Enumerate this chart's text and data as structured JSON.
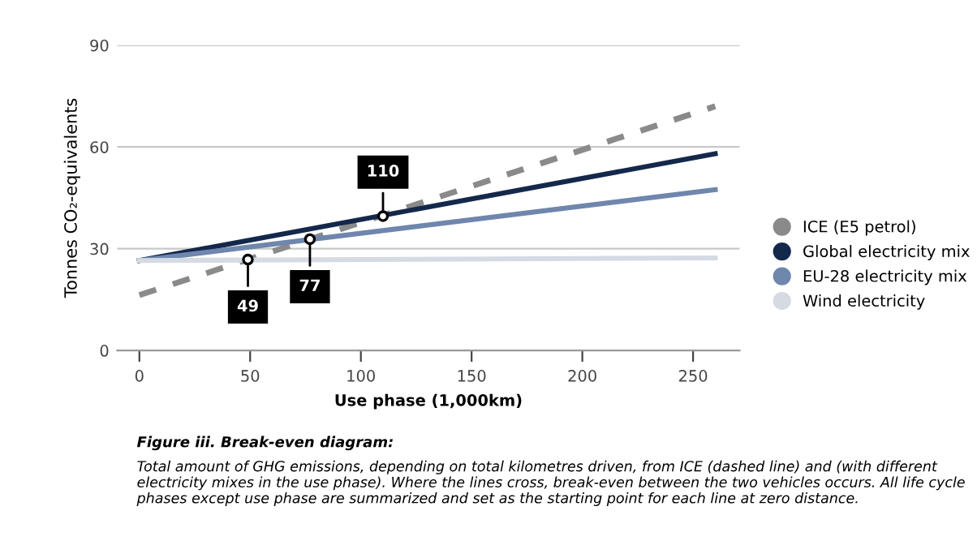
{
  "chart_data": {
    "type": "line",
    "title": "Figure iii. Break-even diagram:",
    "xlabel": "Use phase (1,000km)",
    "ylabel": "Tonnes CO₂-equivalents",
    "series": [
      {
        "name": "ICE (E5 petrol)",
        "color": "#8a8a8a",
        "line_style": "dashed",
        "values": [
          16.3,
          72
        ]
      },
      {
        "name": "Global electricity mix",
        "color": "#14284b",
        "values": [
          26.5,
          58
        ]
      },
      {
        "name": "EU-28 electricity mix",
        "color": "#6f86ad",
        "values": [
          26.5,
          47.4
        ]
      },
      {
        "name": "Wind electricity",
        "color": "#d5dae3",
        "values": [
          26.5,
          27.3
        ]
      }
    ],
    "annotations": [
      {
        "text": "49",
        "x": 49,
        "y": 26.8
      },
      {
        "text": "77",
        "x": 77,
        "y": 32.8
      },
      {
        "text": "110",
        "x": 110,
        "y": 39.6
      },
      "Total amount of GHG emissions, depending on total kilometres driven, from ICE (dashed line) and (with different electricity mixes in the use phase). Where the lines cross, break-even between the two vehicles occurs. All life cycle phases except use phase are summarized and set as the starting point for each line at zero distance."
    ],
    "x": [
      0,
      260
    ],
    "xlim": [
      -10,
      271
    ],
    "ylim": [
      0,
      90
    ],
    "xticks": [
      0,
      50,
      100,
      150,
      200,
      250
    ],
    "yticks": [
      0,
      30,
      60,
      90
    ],
    "grid": "y",
    "legend": "right",
    "marker": "none"
  }
}
